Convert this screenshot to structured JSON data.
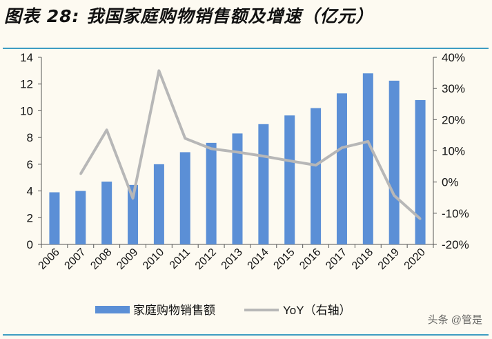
{
  "title": "图表 28: 我国家庭购物销售额及增速（亿元）",
  "watermark": "头条 @管是",
  "colors": {
    "bar": "#5b8fd6",
    "line": "#b7b7b7",
    "rule": "#3d9cc2"
  },
  "chart_data": {
    "type": "bar+line",
    "categories": [
      "2006",
      "2007",
      "2008",
      "2009",
      "2010",
      "2011",
      "2012",
      "2013",
      "2014",
      "2015",
      "2016",
      "2017",
      "2018",
      "2019",
      "2020"
    ],
    "series": [
      {
        "name": "家庭购物销售额",
        "type": "bar",
        "axis": "left",
        "values": [
          3.9,
          4.0,
          4.7,
          4.45,
          6.0,
          6.9,
          7.6,
          8.3,
          9.0,
          9.65,
          10.2,
          11.3,
          12.8,
          12.25,
          10.8
        ]
      },
      {
        "name": "YoY（右轴）",
        "type": "line",
        "axis": "right",
        "values": [
          null,
          2.6,
          16.7,
          -5.2,
          35.7,
          14.0,
          10.7,
          9.6,
          8.3,
          6.8,
          5.4,
          11.0,
          13.0,
          -4.3,
          -11.8
        ]
      }
    ],
    "ylim_left": [
      0,
      14
    ],
    "yticks_left": [
      "0",
      "2",
      "4",
      "6",
      "8",
      "10",
      "12",
      "14"
    ],
    "ylim_right": [
      -20,
      40
    ],
    "yticks_right": [
      "-20%",
      "-10%",
      "0%",
      "10%",
      "20%",
      "30%",
      "40%"
    ],
    "grid": false,
    "legend": "bottom"
  }
}
